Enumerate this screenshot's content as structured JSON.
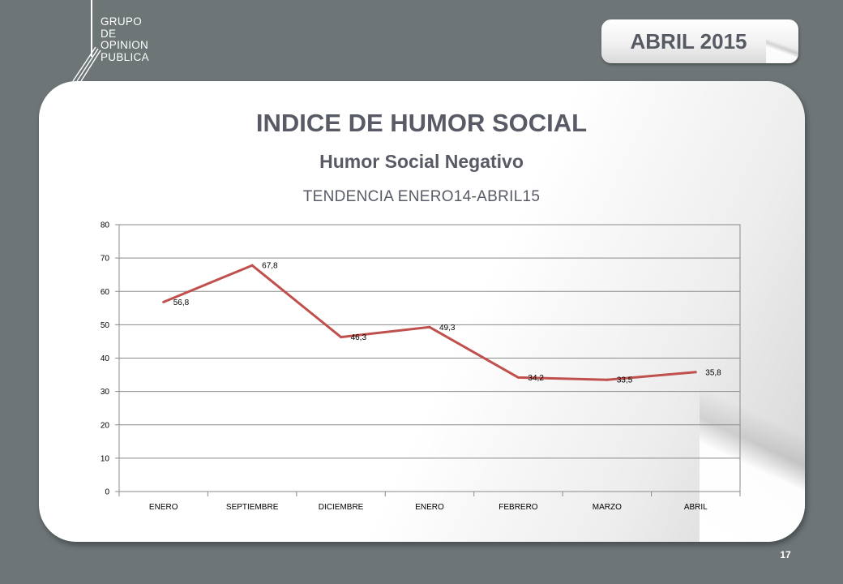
{
  "logo": {
    "lines": [
      "GRUPO",
      "DE",
      "OPINION",
      "PUBLICA"
    ]
  },
  "header": {
    "date_badge": "ABRIL 2015"
  },
  "slide": {
    "title": "INDICE DE HUMOR SOCIAL",
    "subtitle": "Humor Social Negativo",
    "trend_label": "TENDENCIA ENERO14-ABRIL15",
    "page_number": "17"
  },
  "colors": {
    "background": "#6d7577",
    "line": "#c0504d",
    "title_text": "#585b66"
  },
  "chart_data": {
    "type": "line",
    "categories": [
      "ENERO",
      "SEPTIEMBRE",
      "DICIEMBRE",
      "ENERO",
      "FEBRERO",
      "MARZO",
      "ABRIL"
    ],
    "series": [
      {
        "values": [
          56.8,
          67.8,
          46.3,
          49.3,
          34.2,
          33.5,
          35.8
        ]
      }
    ],
    "data_labels": [
      "56,8",
      "67,8",
      "46,3",
      "49,3",
      "34,2",
      "33,5",
      "35,8"
    ],
    "ylim": [
      0,
      80
    ],
    "yticks": [
      "0",
      "10",
      "20",
      "30",
      "40",
      "50",
      "60",
      "70",
      "80"
    ],
    "grid": true,
    "legend": false
  }
}
